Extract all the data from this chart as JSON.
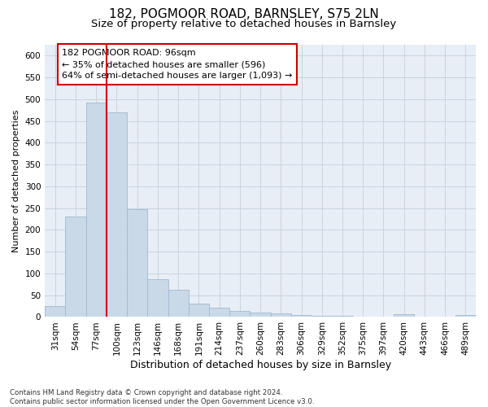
{
  "title1": "182, POGMOOR ROAD, BARNSLEY, S75 2LN",
  "title2": "Size of property relative to detached houses in Barnsley",
  "xlabel": "Distribution of detached houses by size in Barnsley",
  "ylabel": "Number of detached properties",
  "footnote": "Contains HM Land Registry data © Crown copyright and database right 2024.\nContains public sector information licensed under the Open Government Licence v3.0.",
  "bar_labels": [
    "31sqm",
    "54sqm",
    "77sqm",
    "100sqm",
    "123sqm",
    "146sqm",
    "168sqm",
    "191sqm",
    "214sqm",
    "237sqm",
    "260sqm",
    "283sqm",
    "306sqm",
    "329sqm",
    "352sqm",
    "375sqm",
    "397sqm",
    "420sqm",
    "443sqm",
    "466sqm",
    "489sqm"
  ],
  "bar_values": [
    25,
    230,
    492,
    470,
    248,
    87,
    62,
    31,
    22,
    14,
    10,
    9,
    5,
    3,
    2,
    1,
    1,
    6,
    1,
    1,
    4
  ],
  "bar_color": "#c9d9e8",
  "bar_edge_color": "#a0b8d0",
  "vline_color": "#cc0000",
  "annotation_text": "182 POGMOOR ROAD: 96sqm\n← 35% of detached houses are smaller (596)\n64% of semi-detached houses are larger (1,093) →",
  "annotation_box_color": "#ffffff",
  "annotation_box_edgecolor": "#cc0000",
  "ylim": [
    0,
    625
  ],
  "yticks": [
    0,
    50,
    100,
    150,
    200,
    250,
    300,
    350,
    400,
    450,
    500,
    550,
    600
  ],
  "grid_color": "#c8d4e0",
  "bg_color": "#e8eef5",
  "fig_color": "#ffffff",
  "title1_fontsize": 11,
  "title2_fontsize": 9.5,
  "xlabel_fontsize": 9,
  "ylabel_fontsize": 8,
  "tick_fontsize": 7.5,
  "annotation_fontsize": 8
}
